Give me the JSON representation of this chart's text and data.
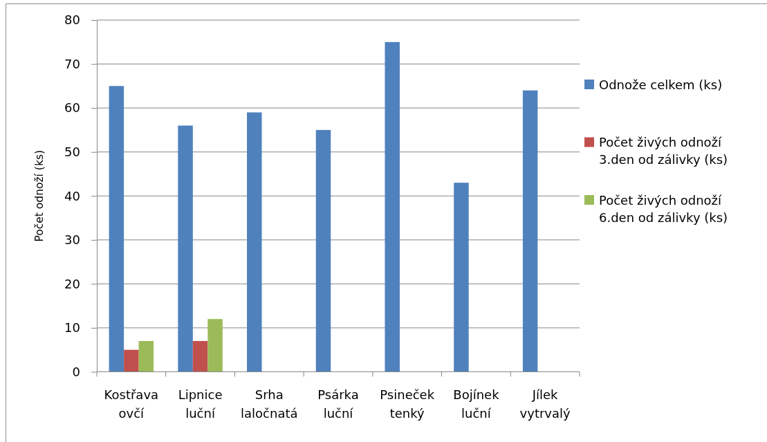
{
  "chart_data": {
    "type": "bar",
    "ylabel": "Počet odnoží (ks)",
    "categories": [
      "Kostřava ovčí",
      "Lipnice luční",
      "Srha laločnatá",
      "Psárka luční",
      "Psineček tenký",
      "Bojínek luční",
      "Jílek vytrvalý"
    ],
    "series": [
      {
        "name": "Odnože celkem (ks)",
        "color": "#4f81bd",
        "values": [
          65,
          56,
          59,
          55,
          75,
          43,
          64
        ]
      },
      {
        "name": "Počet živých odnoží 3.den od zálivky (ks)",
        "color": "#c0504d",
        "values": [
          5,
          7,
          null,
          null,
          null,
          null,
          null
        ]
      },
      {
        "name": "Počet živých odnoží 6.den od zálivky (ks)",
        "color": "#9bbb59",
        "values": [
          7,
          12,
          null,
          null,
          null,
          null,
          null
        ]
      }
    ],
    "ylim": [
      0,
      80
    ],
    "yticks": [
      0,
      10,
      20,
      30,
      40,
      50,
      60,
      70,
      80
    ],
    "grid": "y",
    "legend": "right"
  }
}
